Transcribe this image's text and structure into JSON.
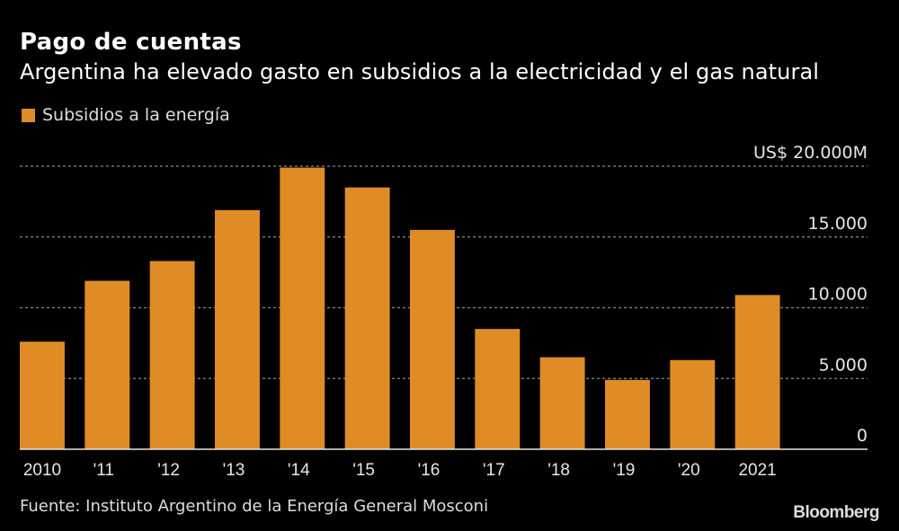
{
  "header": {
    "title": "Pago de cuentas",
    "subtitle": "Argentina ha elevado gasto en subsidios a la electricidad y el gas natural"
  },
  "legend": {
    "items": [
      {
        "label": "Subsidios a la energía",
        "color": "#e08c26"
      }
    ]
  },
  "footer": {
    "source": "Fuente: Instituto Argentino de la Energía General Mosconi",
    "brand": "Bloomberg"
  },
  "chart_data": {
    "type": "bar",
    "title": "Pago de cuentas",
    "subtitle": "Argentina ha elevado gasto en subsidios a la electricidad y el gas natural",
    "xlabel": "",
    "ylabel": "",
    "categories": [
      "2010",
      "'11",
      "'12",
      "'13",
      "'14",
      "'15",
      "'16",
      "'17",
      "'18",
      "'19",
      "'20",
      "2021"
    ],
    "series": [
      {
        "name": "Subsidios a la energía",
        "color": "#e08c26",
        "values": [
          7600,
          11900,
          13300,
          16900,
          19900,
          18500,
          15500,
          8500,
          6500,
          4900,
          6300,
          10900
        ]
      }
    ],
    "ylim": [
      0,
      20000
    ],
    "yticks": [
      0,
      5000,
      10000,
      15000,
      20000
    ],
    "ytick_labels": [
      "0",
      "5.000",
      "10.000",
      "15.000",
      "US$ 20.000M"
    ],
    "y_axis_position": "right",
    "grid": true,
    "legend_position": "top-left"
  }
}
